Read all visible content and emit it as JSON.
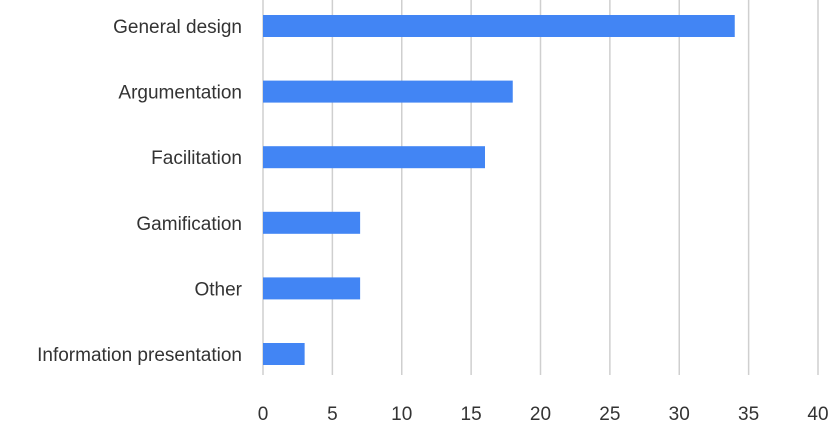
{
  "chart_data": {
    "type": "bar",
    "orientation": "horizontal",
    "categories": [
      "General design",
      "Argumentation",
      "Facilitation",
      "Gamification",
      "Other",
      "Information presentation"
    ],
    "values": [
      34,
      18,
      16,
      7,
      7,
      3
    ],
    "xlim": [
      0,
      40
    ],
    "x_ticks": [
      "0",
      "5",
      "10",
      "15",
      "20",
      "25",
      "30",
      "35",
      "40"
    ],
    "grid": "vertical",
    "legend": "none",
    "bar_color": "#4285f4",
    "title": "",
    "xlabel": "",
    "ylabel": ""
  }
}
